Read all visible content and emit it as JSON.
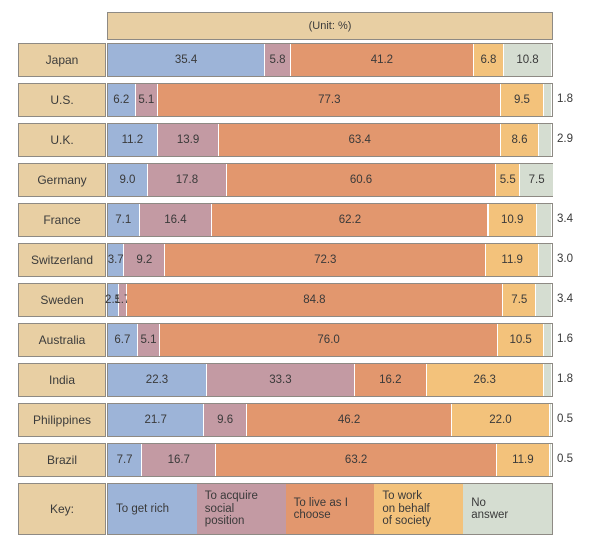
{
  "chart_data": {
    "type": "bar",
    "stacked": true,
    "orientation": "horizontal",
    "unit_label": "(Unit: %)",
    "categories": [
      "Japan",
      "U.S.",
      "U.K.",
      "Germany",
      "France",
      "Switzerland",
      "Sweden",
      "Australia",
      "India",
      "Philippines",
      "Brazil"
    ],
    "series": [
      {
        "name": "To get rich",
        "color": "#9db4d8",
        "values": [
          35.4,
          6.2,
          11.2,
          9.0,
          7.1,
          3.7,
          2.5,
          6.7,
          22.3,
          21.7,
          7.7
        ]
      },
      {
        "name": "To acquire social position",
        "color": "#c39aa3",
        "values": [
          5.8,
          5.1,
          13.9,
          17.8,
          16.4,
          9.2,
          1.7,
          5.1,
          33.3,
          9.6,
          16.7
        ]
      },
      {
        "name": "To live as I choose",
        "color": "#e2976e",
        "values": [
          41.2,
          77.3,
          63.4,
          60.6,
          62.2,
          72.3,
          84.8,
          76.0,
          16.2,
          46.2,
          63.2
        ]
      },
      {
        "name": "To work on behalf of society",
        "color": "#f3c27b",
        "values": [
          6.8,
          9.5,
          8.6,
          5.5,
          10.9,
          11.9,
          7.5,
          10.5,
          26.3,
          22.0,
          11.9
        ]
      },
      {
        "name": "No answer",
        "color": "#d5ddd1",
        "values": [
          10.8,
          1.8,
          2.9,
          7.5,
          3.4,
          3.0,
          3.4,
          1.6,
          1.8,
          0.5,
          0.5
        ]
      }
    ],
    "value_labels": [
      [
        "35.4",
        "5.8",
        "41.2",
        "6.8",
        "10.8"
      ],
      [
        "6.2",
        "5.1",
        "77.3",
        "9.5",
        "1.8"
      ],
      [
        "11.2",
        "13.9",
        "63.4",
        "8.6",
        "2.9"
      ],
      [
        "9.0",
        "17.8",
        "60.6",
        "5.5",
        "7.5"
      ],
      [
        "7.1",
        "16.4",
        "62.2",
        "10.9",
        "3.4"
      ],
      [
        "3.7",
        "9.2",
        "72.3",
        "11.9",
        "3.0"
      ],
      [
        "2.5",
        "1.7",
        "84.8",
        "7.5",
        "3.4"
      ],
      [
        "6.7",
        "5.1",
        "76.0",
        "10.5",
        "1.6"
      ],
      [
        "22.3",
        "33.3",
        "16.2",
        "26.3",
        "1.8"
      ],
      [
        "21.7",
        "9.6",
        "46.2",
        "22.0",
        "0.5"
      ],
      [
        "7.7",
        "16.7",
        "63.2",
        "11.9",
        "0.5"
      ]
    ],
    "key_label": "Key:",
    "key_items": [
      {
        "line1": "To get rich",
        "line2": "",
        "line3": ""
      },
      {
        "line1": "To acquire",
        "line2": "social",
        "line3": "position"
      },
      {
        "line1": "To live as I",
        "line2": "choose",
        "line3": ""
      },
      {
        "line1": "To work",
        "line2": "on behalf",
        "line3": "of society"
      },
      {
        "line1": "No",
        "line2": "answer",
        "line3": ""
      }
    ],
    "xlim": [
      0,
      100
    ]
  }
}
